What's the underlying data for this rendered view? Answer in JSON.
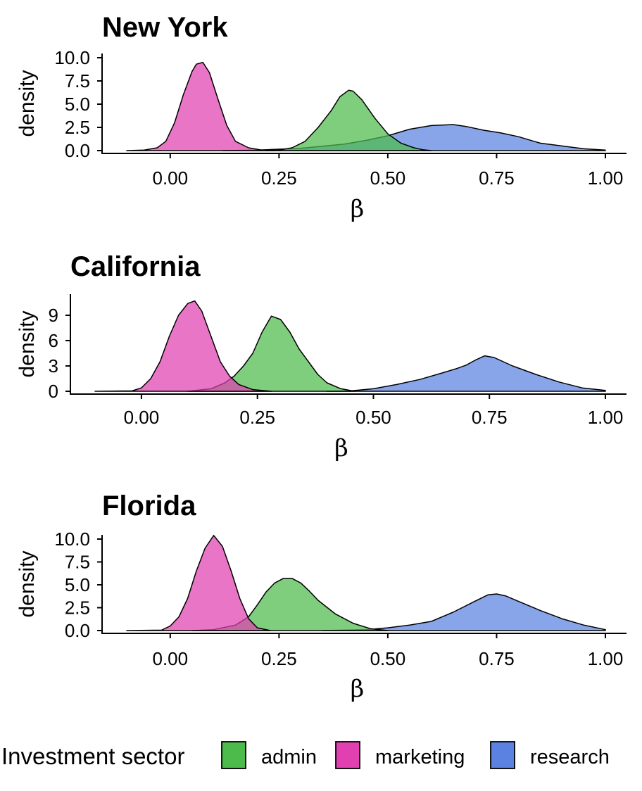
{
  "chart_data": [
    {
      "type": "area",
      "title": "New York",
      "xlabel": "β",
      "ylabel": "density",
      "xlim": [
        -0.1,
        1.0
      ],
      "ylim": [
        0,
        10
      ],
      "xticks": [
        "0.00",
        "0.25",
        "0.50",
        "0.75",
        "1.00"
      ],
      "xtick_values": [
        0,
        0.25,
        0.5,
        0.75,
        1.0
      ],
      "yticks": [
        "0.0",
        "2.5",
        "5.0",
        "7.5",
        "10.0"
      ],
      "ytick_values": [
        0,
        2.5,
        5,
        7.5,
        10
      ],
      "series": [
        {
          "name": "admin",
          "x": [
            0.22,
            0.25,
            0.28,
            0.31,
            0.34,
            0.37,
            0.39,
            0.41,
            0.42,
            0.44,
            0.47,
            0.5,
            0.53,
            0.56,
            0.58,
            0.6
          ],
          "y": [
            0.0,
            0.05,
            0.3,
            1.0,
            2.5,
            4.3,
            5.8,
            6.5,
            6.4,
            5.5,
            3.5,
            1.8,
            0.8,
            0.3,
            0.1,
            0.0
          ]
        },
        {
          "name": "marketing",
          "x": [
            -0.1,
            -0.06,
            -0.03,
            -0.01,
            0.01,
            0.03,
            0.05,
            0.06,
            0.075,
            0.09,
            0.11,
            0.13,
            0.15,
            0.18,
            0.21,
            0.24
          ],
          "y": [
            0.0,
            0.05,
            0.3,
            1.0,
            3.0,
            6.0,
            8.5,
            9.3,
            9.5,
            8.4,
            5.5,
            2.7,
            1.0,
            0.3,
            0.05,
            0.0
          ]
        },
        {
          "name": "research",
          "x": [
            0.12,
            0.2,
            0.3,
            0.4,
            0.45,
            0.5,
            0.55,
            0.6,
            0.65,
            0.68,
            0.72,
            0.76,
            0.8,
            0.85,
            0.9,
            0.95,
            1.0
          ],
          "y": [
            0.0,
            0.05,
            0.25,
            0.7,
            1.1,
            1.6,
            2.3,
            2.7,
            2.8,
            2.6,
            2.2,
            1.9,
            1.5,
            0.8,
            0.5,
            0.2,
            0.05
          ]
        }
      ]
    },
    {
      "type": "area",
      "title": "California",
      "xlabel": "β",
      "ylabel": "density",
      "xlim": [
        -0.1,
        1.0
      ],
      "ylim": [
        0,
        11
      ],
      "xticks": [
        "0.00",
        "0.25",
        "0.50",
        "0.75",
        "1.00"
      ],
      "xtick_values": [
        0,
        0.25,
        0.5,
        0.75,
        1.0
      ],
      "yticks": [
        "0",
        "3",
        "6",
        "9"
      ],
      "ytick_values": [
        0,
        3,
        6,
        9
      ],
      "series": [
        {
          "name": "admin",
          "x": [
            0.1,
            0.15,
            0.18,
            0.2,
            0.22,
            0.24,
            0.26,
            0.28,
            0.3,
            0.32,
            0.34,
            0.36,
            0.38,
            0.4,
            0.43,
            0.46
          ],
          "y": [
            0.0,
            0.3,
            1.0,
            1.8,
            3.0,
            4.5,
            7.0,
            8.9,
            8.5,
            7.0,
            5.0,
            3.5,
            2.0,
            1.0,
            0.3,
            0.0
          ]
        },
        {
          "name": "marketing",
          "x": [
            -0.1,
            -0.02,
            0.0,
            0.02,
            0.04,
            0.06,
            0.08,
            0.1,
            0.115,
            0.13,
            0.15,
            0.17,
            0.19,
            0.21,
            0.24,
            0.28
          ],
          "y": [
            0.0,
            0.05,
            0.4,
            1.5,
            3.5,
            6.5,
            9.0,
            10.4,
            10.7,
            9.5,
            6.5,
            3.5,
            1.8,
            0.8,
            0.2,
            0.0
          ]
        },
        {
          "name": "research",
          "x": [
            0.4,
            0.45,
            0.5,
            0.55,
            0.6,
            0.65,
            0.68,
            0.7,
            0.72,
            0.74,
            0.76,
            0.78,
            0.8,
            0.85,
            0.9,
            0.95,
            1.0
          ],
          "y": [
            0.0,
            0.05,
            0.3,
            0.8,
            1.4,
            2.2,
            2.7,
            3.1,
            3.7,
            4.2,
            4.0,
            3.5,
            3.0,
            2.0,
            1.1,
            0.4,
            0.1
          ]
        }
      ]
    },
    {
      "type": "area",
      "title": "Florida",
      "xlabel": "β",
      "ylabel": "density",
      "xlim": [
        -0.1,
        1.0
      ],
      "ylim": [
        0,
        10
      ],
      "xticks": [
        "0.00",
        "0.25",
        "0.50",
        "0.75",
        "1.00"
      ],
      "xtick_values": [
        0,
        0.25,
        0.5,
        0.75,
        1.0
      ],
      "yticks": [
        "0.0",
        "2.5",
        "5.0",
        "7.5",
        "10.0"
      ],
      "ytick_values": [
        0,
        2.5,
        5,
        7.5,
        10
      ],
      "series": [
        {
          "name": "admin",
          "x": [
            0.05,
            0.1,
            0.15,
            0.18,
            0.2,
            0.22,
            0.24,
            0.26,
            0.28,
            0.3,
            0.32,
            0.34,
            0.38,
            0.42,
            0.46,
            0.5
          ],
          "y": [
            0.0,
            0.1,
            0.6,
            1.5,
            2.8,
            4.2,
            5.2,
            5.7,
            5.7,
            5.2,
            4.3,
            3.3,
            1.8,
            0.8,
            0.2,
            0.0
          ]
        },
        {
          "name": "marketing",
          "x": [
            -0.1,
            -0.02,
            0.0,
            0.02,
            0.04,
            0.06,
            0.08,
            0.1,
            0.12,
            0.14,
            0.16,
            0.18,
            0.2,
            0.23
          ],
          "y": [
            0.0,
            0.05,
            0.5,
            1.5,
            3.5,
            6.5,
            9.0,
            10.4,
            9.2,
            6.5,
            3.5,
            1.3,
            0.3,
            0.0
          ]
        },
        {
          "name": "research",
          "x": [
            0.35,
            0.4,
            0.45,
            0.5,
            0.55,
            0.6,
            0.65,
            0.7,
            0.73,
            0.75,
            0.77,
            0.8,
            0.85,
            0.9,
            0.95,
            1.0
          ],
          "y": [
            0.0,
            0.05,
            0.1,
            0.3,
            0.6,
            1.0,
            2.0,
            3.2,
            3.9,
            4.0,
            3.8,
            3.2,
            2.2,
            1.3,
            0.6,
            0.1
          ]
        }
      ]
    }
  ],
  "legend": {
    "title": "Investment sector",
    "items": [
      {
        "label": "admin",
        "color": "#4cbb4c"
      },
      {
        "label": "marketing",
        "color": "#e040b0"
      },
      {
        "label": "research",
        "color": "#5b82e0"
      }
    ]
  },
  "colors": {
    "admin": "#4cbb4c",
    "marketing": "#e040b0",
    "research": "#5b82e0"
  }
}
